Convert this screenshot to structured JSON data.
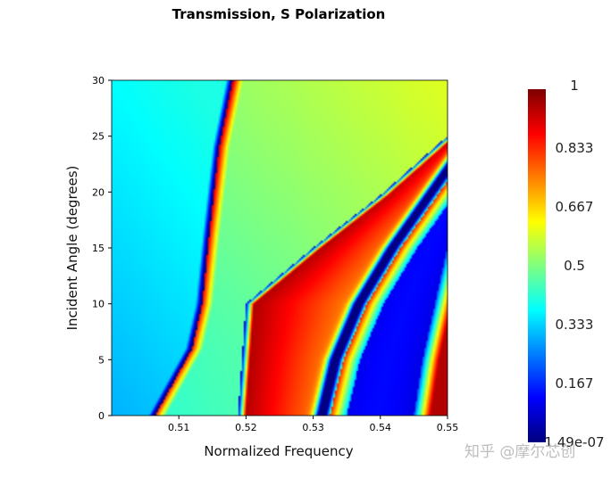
{
  "chart_data": {
    "type": "heatmap",
    "title": "Transmission, S Polarization",
    "xlabel": "Normalized Frequency",
    "ylabel": "Incident Angle (degrees)",
    "xlim": [
      0.5,
      0.55
    ],
    "ylim": [
      0,
      30
    ],
    "x_ticks": [
      "0.51",
      "0.52",
      "0.53",
      "0.54",
      "0.55"
    ],
    "y_ticks": [
      "0",
      "5",
      "10",
      "15",
      "20",
      "25",
      "30"
    ],
    "colormap": "jet",
    "colorbar": {
      "min": 1.49e-07,
      "max": 1,
      "tick_labels": [
        "1",
        "0.833",
        "0.667",
        "0.5",
        "0.333",
        "0.167",
        "1.49e-07"
      ]
    },
    "features": [
      {
        "kind": "sharp-resonance-line",
        "points": [
          [
            0.5065,
            0
          ],
          [
            0.512,
            6
          ],
          [
            0.5135,
            10
          ],
          [
            0.5145,
            16
          ],
          [
            0.516,
            24
          ],
          [
            0.518,
            30
          ]
        ]
      },
      {
        "kind": "band-edge-line",
        "points": [
          [
            0.5188,
            0
          ],
          [
            0.52,
            10
          ],
          [
            0.53,
            15
          ],
          [
            0.54,
            19.7
          ],
          [
            0.55,
            25
          ]
        ]
      },
      {
        "kind": "fringe-dip-line",
        "points": [
          [
            0.5325,
            0
          ],
          [
            0.5345,
            5
          ],
          [
            0.538,
            10
          ],
          [
            0.543,
            15
          ],
          [
            0.55,
            21
          ]
        ]
      },
      {
        "kind": "fringe-peak-line",
        "points": [
          [
            0.5465,
            0
          ],
          [
            0.5478,
            5
          ],
          [
            0.55,
            11
          ]
        ]
      }
    ]
  },
  "watermark": "知乎 @摩尔芯创",
  "colors": {
    "background": "#ffffff",
    "axis": "#000000",
    "watermark": "#bdbdbd"
  }
}
